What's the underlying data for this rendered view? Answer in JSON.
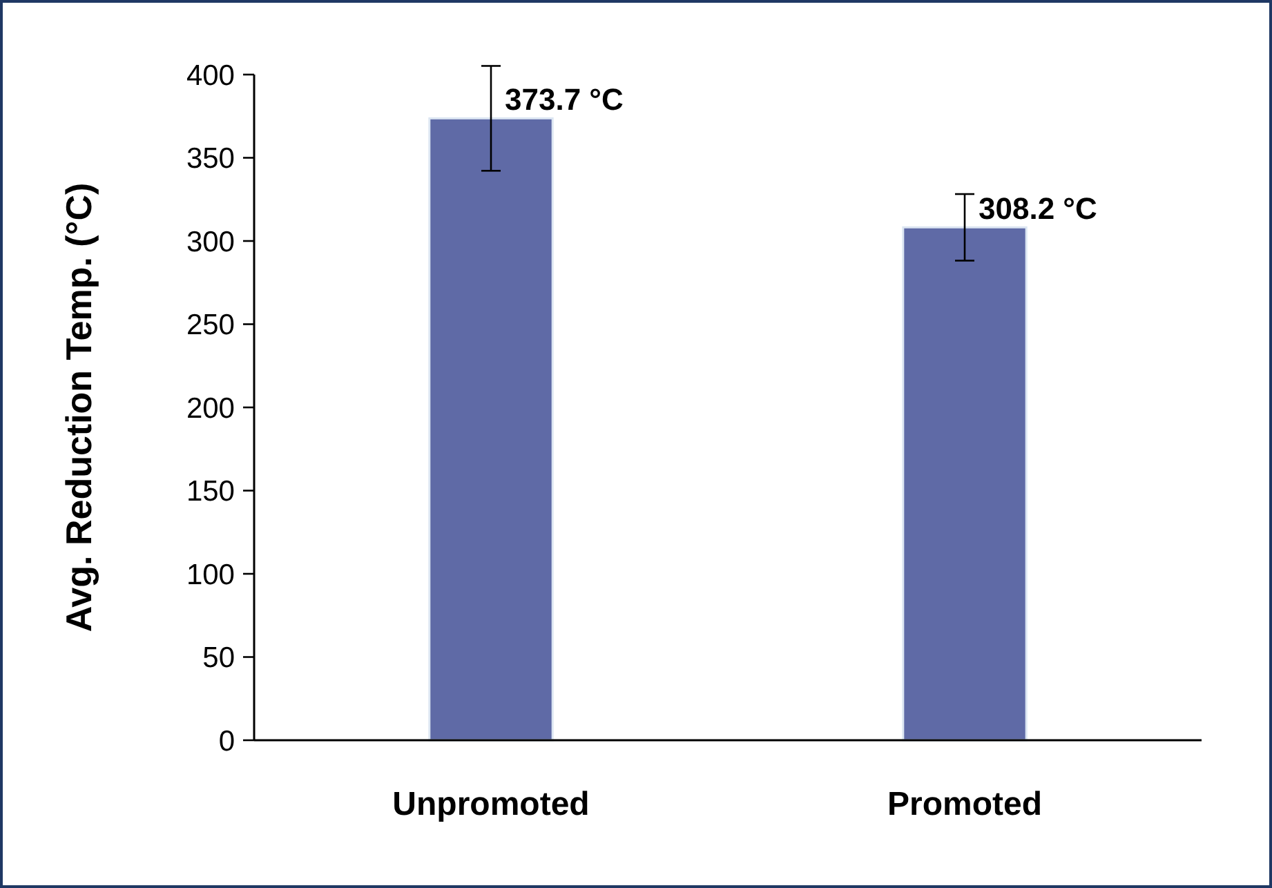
{
  "chart_data": {
    "type": "bar",
    "ylabel": "Avg. Reduction Temp. (°C)",
    "categories": [
      "Unpromoted",
      "Promoted"
    ],
    "values": [
      373.7,
      308.2
    ],
    "color": "#5f6aa6",
    "errors": [
      31.5,
      20
    ],
    "value_labels": [
      "373.7 °C",
      "308.2 °C"
    ],
    "ylim": [
      0,
      400
    ],
    "yticks": [
      0,
      50,
      100,
      150,
      200,
      250,
      300,
      350,
      400
    ],
    "grid": false
  }
}
